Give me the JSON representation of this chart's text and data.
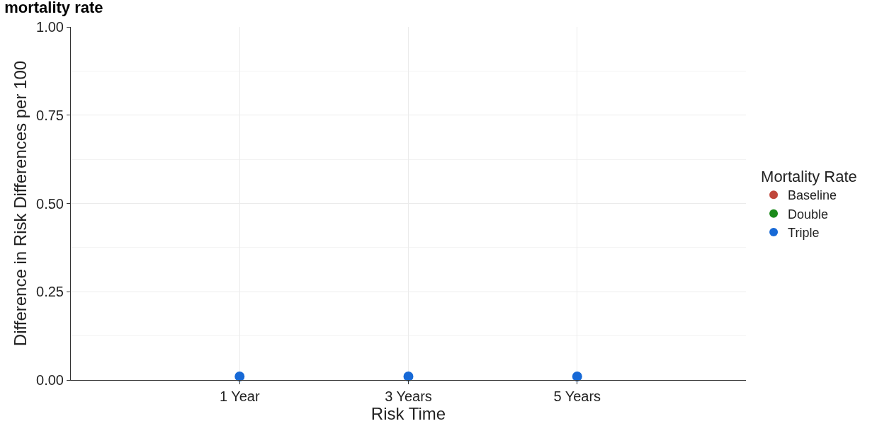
{
  "chart_data": {
    "type": "scatter",
    "title": "mortality rate",
    "xlabel": "Risk Time",
    "ylabel": "Difference in Risk Differences per 100",
    "legend_title": "Mortality Rate",
    "categories": [
      "1 Year",
      "3 Years",
      "5 Years"
    ],
    "series": [
      {
        "name": "Baseline",
        "color": "#c0463a",
        "values": [
          null,
          null,
          null
        ]
      },
      {
        "name": "Double",
        "color": "#1a8a1a",
        "values": [
          null,
          null,
          null
        ]
      },
      {
        "name": "Triple",
        "color": "#1769d6",
        "values": [
          0.01,
          0.01,
          0.01
        ]
      }
    ],
    "ylim": [
      0,
      1
    ],
    "yticks": [
      {
        "value": 0,
        "label": "0.00"
      },
      {
        "value": 0.25,
        "label": "0.25"
      },
      {
        "value": 0.5,
        "label": "0.50"
      },
      {
        "value": 0.75,
        "label": "0.75"
      },
      {
        "value": 1,
        "label": "1.00"
      }
    ],
    "grid": true,
    "legend": "right",
    "marker": "circle"
  }
}
